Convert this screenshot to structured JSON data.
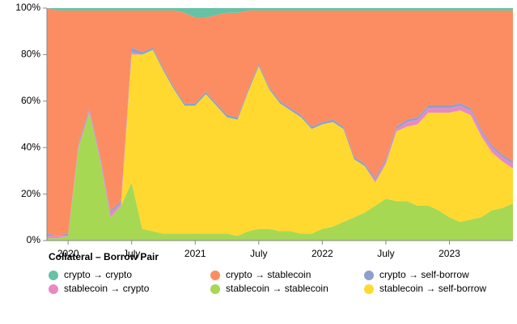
{
  "chart_data": {
    "type": "stacked-area-percent",
    "legend_title": "Collateral – Borrow Pair",
    "x": [
      "2019-11",
      "2019-12",
      "2020-01",
      "2020-02",
      "2020-03",
      "2020-04",
      "2020-05",
      "2020-06",
      "2020-07",
      "2020-08",
      "2020-09",
      "2020-10",
      "2020-11",
      "2020-12",
      "2021-01",
      "2021-02",
      "2021-03",
      "2021-04",
      "2021-05",
      "2021-06",
      "2021-07",
      "2021-08",
      "2021-09",
      "2021-10",
      "2021-11",
      "2021-12",
      "2022-01",
      "2022-02",
      "2022-03",
      "2022-04",
      "2022-05",
      "2022-06",
      "2022-07",
      "2022-08",
      "2022-09",
      "2022-10",
      "2022-11",
      "2022-12",
      "2023-01",
      "2023-02",
      "2023-03",
      "2023-04",
      "2023-05",
      "2023-06",
      "2023-07"
    ],
    "xlim": [
      "2019-11",
      "2023-07"
    ],
    "xticks": [
      {
        "value": "2020-01",
        "label": "2020"
      },
      {
        "value": "2020-07",
        "label": "July"
      },
      {
        "value": "2021-01",
        "label": "2021"
      },
      {
        "value": "2021-07",
        "label": "July"
      },
      {
        "value": "2022-01",
        "label": "2022"
      },
      {
        "value": "2022-07",
        "label": "July"
      },
      {
        "value": "2023-01",
        "label": "2023"
      }
    ],
    "ylim": [
      0,
      100
    ],
    "yticks": [
      {
        "value": 0,
        "label": "0%"
      },
      {
        "value": 20,
        "label": "20%"
      },
      {
        "value": 40,
        "label": "40%"
      },
      {
        "value": 60,
        "label": "60%"
      },
      {
        "value": 80,
        "label": "80%"
      },
      {
        "value": 100,
        "label": "100%"
      }
    ],
    "series": [
      {
        "name": "stablecoin → stablecoin",
        "color": "#a6d854",
        "values": [
          1,
          1,
          2,
          40,
          55,
          35,
          10,
          15,
          25,
          5,
          4,
          3,
          3,
          3,
          3,
          3,
          3,
          3,
          2,
          4,
          5,
          5,
          4,
          4,
          3,
          3,
          5,
          6,
          8,
          10,
          12,
          15,
          18,
          17,
          17,
          15,
          15,
          13,
          10,
          8,
          9,
          10,
          13,
          14,
          16
        ]
      },
      {
        "name": "stablecoin → self-borrow",
        "color": "#ffd92f",
        "values": [
          0,
          0,
          0,
          0,
          0,
          0,
          0,
          0,
          55,
          75,
          78,
          70,
          62,
          55,
          55,
          60,
          55,
          50,
          50,
          60,
          70,
          60,
          55,
          52,
          50,
          45,
          45,
          45,
          40,
          25,
          20,
          10,
          15,
          30,
          32,
          35,
          40,
          42,
          45,
          48,
          45,
          35,
          25,
          20,
          15
        ]
      },
      {
        "name": "stablecoin → crypto",
        "color": "#e78ac3",
        "values": [
          1,
          1,
          0,
          1,
          1,
          1,
          2,
          1,
          1,
          0,
          0,
          0,
          0,
          0,
          0,
          0,
          0,
          0,
          0,
          0,
          0,
          0,
          0,
          0,
          0,
          0,
          0,
          0,
          0,
          0,
          0,
          1,
          1,
          1,
          2,
          2,
          2,
          2,
          2,
          2,
          2,
          2,
          2,
          2,
          2
        ]
      },
      {
        "name": "crypto → self-borrow",
        "color": "#8da0cb",
        "values": [
          1,
          0,
          1,
          1,
          1,
          1,
          1,
          1,
          2,
          1,
          1,
          1,
          1,
          1,
          1,
          1,
          1,
          1,
          1,
          1,
          1,
          1,
          1,
          1,
          1,
          1,
          1,
          1,
          1,
          1,
          1,
          1,
          1,
          1,
          1,
          1,
          1,
          1,
          1,
          1,
          1,
          1,
          1,
          1,
          1
        ]
      },
      {
        "name": "crypto → stablecoin",
        "color": "#fc8d62",
        "values": [
          97,
          97,
          96,
          57,
          42,
          62,
          86,
          82,
          16,
          18,
          16,
          25,
          33,
          39,
          37,
          32,
          38,
          44,
          45,
          34,
          23,
          33,
          39,
          42,
          45,
          50,
          48,
          47,
          50,
          63,
          66,
          72,
          64,
          50,
          47,
          46,
          41,
          41,
          41,
          40,
          42,
          51,
          58,
          62,
          65
        ]
      },
      {
        "name": "crypto → crypto",
        "color": "#66c2a5",
        "values": [
          0,
          1,
          1,
          1,
          1,
          1,
          1,
          1,
          1,
          1,
          1,
          1,
          1,
          2,
          4,
          4,
          3,
          2,
          2,
          1,
          1,
          1,
          1,
          1,
          1,
          1,
          1,
          1,
          1,
          1,
          1,
          1,
          1,
          1,
          1,
          1,
          1,
          1,
          1,
          1,
          1,
          1,
          1,
          1,
          1
        ]
      }
    ],
    "legend_order": [
      5,
      4,
      3,
      2,
      0,
      1
    ]
  }
}
